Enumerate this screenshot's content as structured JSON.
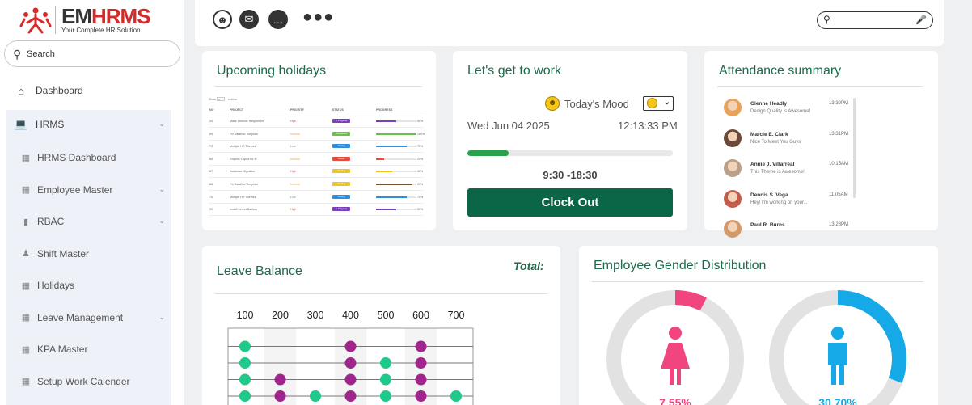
{
  "brand": {
    "name_a": "EM",
    "name_b": "HRMS",
    "tagline": "Your Complete HR Solution."
  },
  "sidebar": {
    "search_label": "Search",
    "items": [
      {
        "label": "Dashboard",
        "icon": "home-icon"
      },
      {
        "label": "HRMS",
        "icon": "laptop-icon"
      }
    ],
    "sub_items": [
      {
        "label": "HRMS Dashboard",
        "icon": "building-icon",
        "chevron": false
      },
      {
        "label": "Employee Master",
        "icon": "building-icon",
        "chevron": true
      },
      {
        "label": "RBAC",
        "icon": "user-key-icon",
        "chevron": true
      },
      {
        "label": "Shift Master",
        "icon": "person-icon",
        "chevron": false
      },
      {
        "label": "Holidays",
        "icon": "building-icon",
        "chevron": false
      },
      {
        "label": "Leave Management",
        "icon": "building-icon",
        "chevron": true
      },
      {
        "label": "KPA Master",
        "icon": "building-icon",
        "chevron": false
      },
      {
        "label": "Setup Work Calender",
        "icon": "building-icon",
        "chevron": false
      }
    ]
  },
  "topbar": {
    "icons": [
      "user-circle-icon",
      "mail-icon",
      "chat-icon",
      "more-icon"
    ]
  },
  "holidays": {
    "title": "Upcoming holidays",
    "show_label": "Show",
    "entries_label": "entries",
    "columns": [
      "NO",
      "PROJECT",
      "PRIORITY",
      "STATUS",
      "PROGRESS"
    ],
    "rows": [
      {
        "no": "34",
        "project": "Make Website Responsive",
        "priority": "High",
        "status": "In Progress",
        "progress": 50,
        "pct": "50%",
        "pcolor": "#7b3fbf"
      },
      {
        "no": "89",
        "project": "Fix DataBox Template",
        "priority": "Normal",
        "status": "Completed",
        "progress": 100,
        "pct": "100%",
        "pcolor": "#6cc04a"
      },
      {
        "no": "73",
        "project": "Multiple HR Themes",
        "priority": "Low",
        "status": "Testing",
        "progress": 75,
        "pct": "75%",
        "pcolor": "#2d8fe0"
      },
      {
        "no": "65",
        "project": "Graphic Layout for IE",
        "priority": "Normal",
        "status": "Issues",
        "progress": 20,
        "pct": "20%",
        "pcolor": "#e84a3c"
      },
      {
        "no": "67",
        "project": "Database Migration",
        "priority": "High",
        "status": "Pending",
        "progress": 40,
        "pct": "40%",
        "pcolor": "#f0c419"
      },
      {
        "no": "88",
        "project": "Fix DataBox Template",
        "priority": "Normal",
        "status": "Pending",
        "progress": 90,
        "pct": "90%",
        "pcolor": "#7a5230"
      },
      {
        "no": "75",
        "project": "Multiple HR Themes",
        "priority": "Low",
        "status": "Testing",
        "progress": 75,
        "pct": "75%",
        "pcolor": "#2d8fe0"
      },
      {
        "no": "95",
        "project": "Install Server Backup",
        "priority": "High",
        "status": "In Progress",
        "progress": 50,
        "pct": "50%",
        "pcolor": "#7b3fbf"
      }
    ],
    "priority_colors": {
      "High": "#d9534f",
      "Normal": "#f0a030",
      "Low": "#4caf50"
    },
    "status_colors": {
      "In Progress": "#7b3fbf",
      "Completed": "#6cc04a",
      "Testing": "#2d8fe0",
      "Issues": "#e84a3c",
      "Pending": "#f0c419"
    }
  },
  "work": {
    "title": "Let's get to work",
    "mood_label": "Today's Mood",
    "date": "Wed Jun 04 2025",
    "time": "12:13:33 PM",
    "progress": 0.2,
    "shift": "9:30 -18:30",
    "clock_out": "Clock Out"
  },
  "attendance": {
    "title": "Attendance summary",
    "entries": [
      {
        "name": "Glenne Headly",
        "msg": "Design Quality is Awesome!",
        "time": "13.30PM",
        "color": "#e8a25a"
      },
      {
        "name": "Marcie E. Clark",
        "msg": "Nice To Meet You Guys",
        "time": "13.31PM",
        "color": "#6b4a3a"
      },
      {
        "name": "Annie J. Villarreal",
        "msg": "This Theme is Awesome!",
        "time": "10,15AM",
        "color": "#b8a08a"
      },
      {
        "name": "Dennis S. Vega",
        "msg": "Hey! I'm working on your...",
        "time": "11,05AM",
        "color": "#c45a4a"
      },
      {
        "name": "Paul R. Burns",
        "msg": "",
        "time": "13.28PM",
        "color": "#d49a6a"
      }
    ]
  },
  "leave": {
    "title": "Leave Balance",
    "total_label": "Total:",
    "chart_data": {
      "type": "scatter",
      "x_ticks": [
        "100",
        "200",
        "300",
        "400",
        "500",
        "600",
        "700"
      ],
      "series": [
        {
          "color": "#1ec98a",
          "points": [
            [
              100,
              1
            ],
            [
              100,
              2
            ],
            [
              100,
              3
            ],
            [
              100,
              4
            ],
            [
              500,
              2
            ],
            [
              500,
              3
            ],
            [
              500,
              4
            ],
            [
              300,
              4
            ],
            [
              700,
              4
            ]
          ]
        },
        {
          "color": "#a0258c",
          "points": [
            [
              400,
              1
            ],
            [
              400,
              2
            ],
            [
              400,
              3
            ],
            [
              400,
              4
            ],
            [
              600,
              1
            ],
            [
              600,
              2
            ],
            [
              600,
              3
            ],
            [
              600,
              4
            ],
            [
              200,
              3
            ],
            [
              200,
              4
            ]
          ]
        }
      ]
    }
  },
  "gender": {
    "title": "Employee Gender Distribution",
    "female": {
      "pct": "7.55%",
      "value": 7.55,
      "color": "#f0457f"
    },
    "male": {
      "pct": "30.70%",
      "value": 30.7,
      "color": "#15a9e8"
    }
  }
}
